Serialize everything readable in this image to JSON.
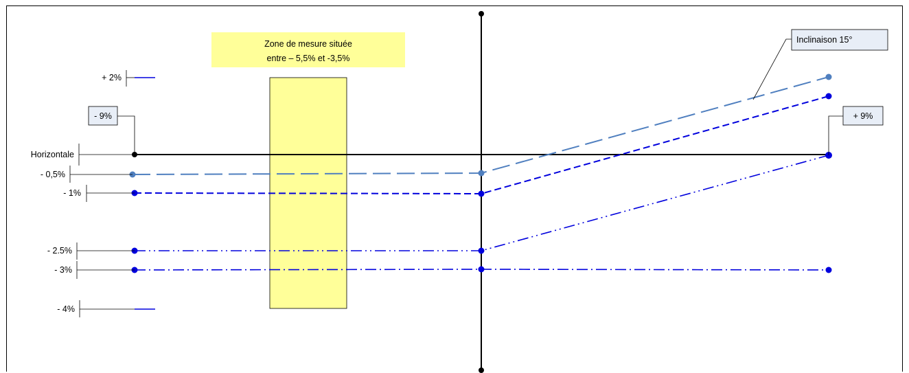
{
  "labels": {
    "plus_2": "+ 2%",
    "horizontale": "Horizontale",
    "minus_0_5": "- 0,5%",
    "minus_1": "- 1%",
    "minus_2_5": "- 2.5%",
    "minus_3": "- 3%",
    "minus_4": "- 4%"
  },
  "callouts": {
    "left_angle": "- 9%",
    "right_angle": "+ 9%",
    "inclinaison": "Inclinaison 15°"
  },
  "zone": {
    "line1": "Zone de mesure située",
    "line2": "entre – 5,5% et -3,5%"
  },
  "colors": {
    "dark_blue": "#0000dd",
    "steel_blue": "#4f7fbf",
    "zone_fill": "#ffff99",
    "callout_fill": "#e8eef7",
    "axis": "#000000"
  }
}
